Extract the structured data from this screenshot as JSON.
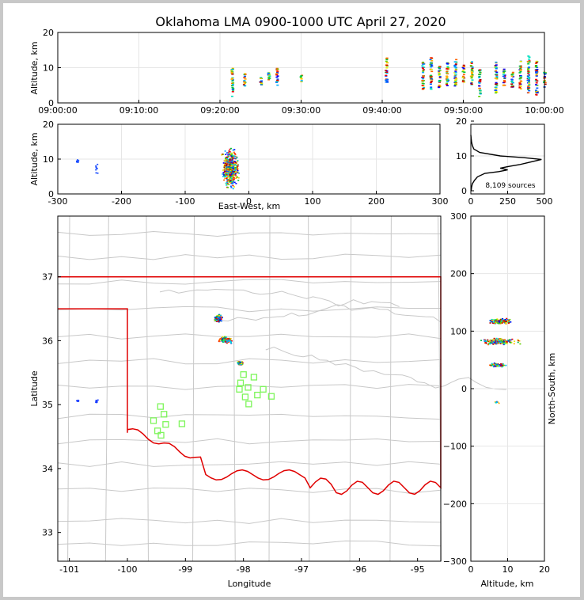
{
  "chart_data": {
    "type": "scatter",
    "title": "Oklahoma LMA 0900-1000 UTC April 27, 2020",
    "colors": {
      "grid": "#e6e6e6",
      "state_border": "#e00000",
      "county_lines": "#c8c8c8",
      "station_marker": "#7df55a",
      "axis": "#000000",
      "frame": "#c8c8c8"
    },
    "panels": [
      {
        "id": "time-altitude",
        "ylabel": "Altitude, km",
        "ylim": [
          0,
          20
        ],
        "yticks": [
          "0",
          "10",
          "20"
        ],
        "xlim_labels": [
          "09:00:00",
          "10:00:00"
        ],
        "xticks": [
          "09:00:00",
          "09:10:00",
          "09:20:00",
          "09:30:00",
          "09:40:00",
          "09:50:00",
          "10:00:00"
        ],
        "clusters": [
          {
            "t_min": 21.5,
            "alt_min": 2,
            "alt_max": 10
          },
          {
            "t_min": 23,
            "alt_min": 5,
            "alt_max": 9
          },
          {
            "t_min": 25,
            "alt_min": 5,
            "alt_max": 8
          },
          {
            "t_min": 26,
            "alt_min": 6,
            "alt_max": 9
          },
          {
            "t_min": 27,
            "alt_min": 5,
            "alt_max": 10
          },
          {
            "t_min": 30,
            "alt_min": 6,
            "alt_max": 8
          },
          {
            "t_min": 40.5,
            "alt_min": 6,
            "alt_max": 13
          },
          {
            "t_min": 45,
            "alt_min": 4,
            "alt_max": 12
          },
          {
            "t_min": 46,
            "alt_min": 4,
            "alt_max": 13
          },
          {
            "t_min": 47,
            "alt_min": 4,
            "alt_max": 11
          },
          {
            "t_min": 48,
            "alt_min": 5,
            "alt_max": 12
          },
          {
            "t_min": 49,
            "alt_min": 5,
            "alt_max": 13
          },
          {
            "t_min": 50,
            "alt_min": 6,
            "alt_max": 11
          },
          {
            "t_min": 51,
            "alt_min": 5,
            "alt_max": 12
          },
          {
            "t_min": 52,
            "alt_min": 2,
            "alt_max": 10
          },
          {
            "t_min": 54,
            "alt_min": 3,
            "alt_max": 12
          },
          {
            "t_min": 55,
            "alt_min": 5,
            "alt_max": 10
          },
          {
            "t_min": 56,
            "alt_min": 4,
            "alt_max": 9
          },
          {
            "t_min": 57,
            "alt_min": 4,
            "alt_max": 12
          },
          {
            "t_min": 58,
            "alt_min": 3,
            "alt_max": 14
          },
          {
            "t_min": 59,
            "alt_min": 2,
            "alt_max": 12
          },
          {
            "t_min": 60,
            "alt_min": 4,
            "alt_max": 9
          }
        ]
      },
      {
        "id": "east-west-altitude",
        "xlabel": "East-West, km",
        "ylabel": "Altitude, km",
        "xlim": [
          -300,
          300
        ],
        "ylim": [
          0,
          20
        ],
        "xticks": [
          "-300",
          "-200",
          "-100",
          "0",
          "100",
          "200",
          "300"
        ],
        "yticks": [
          "0",
          "10",
          "20"
        ],
        "clusters": [
          {
            "x_km": -270,
            "alt_min": 9,
            "alt_max": 10
          },
          {
            "x_km": -240,
            "alt_min": 6,
            "alt_max": 9
          },
          {
            "x_km": -30,
            "alt_min": 1,
            "alt_max": 14
          }
        ]
      },
      {
        "id": "altitude-histogram",
        "xlim": [
          0,
          500
        ],
        "ylim": [
          0,
          20
        ],
        "xticks": [
          "0",
          "250",
          "500"
        ],
        "yticks": [
          "0",
          "10",
          "20"
        ],
        "note": "8,109 sources",
        "counts": [
          {
            "alt": 0,
            "n": 2
          },
          {
            "alt": 1,
            "n": 5
          },
          {
            "alt": 2,
            "n": 10
          },
          {
            "alt": 3,
            "n": 25
          },
          {
            "alt": 4,
            "n": 45
          },
          {
            "alt": 5,
            "n": 95
          },
          {
            "alt": 5.5,
            "n": 190
          },
          {
            "alt": 6,
            "n": 250
          },
          {
            "alt": 6.5,
            "n": 200
          },
          {
            "alt": 7,
            "n": 260
          },
          {
            "alt": 7.5,
            "n": 330
          },
          {
            "alt": 8,
            "n": 380
          },
          {
            "alt": 9,
            "n": 480
          },
          {
            "alt": 9.5,
            "n": 360
          },
          {
            "alt": 10,
            "n": 200
          },
          {
            "alt": 11,
            "n": 60
          },
          {
            "alt": 12,
            "n": 20
          },
          {
            "alt": 13,
            "n": 10
          },
          {
            "alt": 14,
            "n": 5
          },
          {
            "alt": 15,
            "n": 2
          },
          {
            "alt": 16,
            "n": 0
          }
        ]
      },
      {
        "id": "plan-view",
        "xlabel": "Longitude",
        "ylabel": "Latitude",
        "xlim": [
          -101.2,
          -94.6
        ],
        "ylim": [
          32.55,
          37.95
        ],
        "xticks": [
          "-101",
          "-100",
          "-99",
          "-98",
          "-97",
          "-96",
          "-95"
        ],
        "yticks": [
          "33",
          "34",
          "35",
          "36",
          "37"
        ],
        "clusters": [
          {
            "lon": -100.87,
            "lat": 35.07,
            "sx": 0.02,
            "sy": 0.02
          },
          {
            "lon": -100.55,
            "lat": 35.06,
            "sx": 0.03,
            "sy": 0.03
          },
          {
            "lon": -98.45,
            "lat": 36.36,
            "sx": 0.08,
            "sy": 0.07
          },
          {
            "lon": -98.32,
            "lat": 36.02,
            "sx": 0.14,
            "sy": 0.07
          },
          {
            "lon": -98.07,
            "lat": 35.66,
            "sx": 0.06,
            "sy": 0.03
          }
        ],
        "stations": [
          {
            "lon": -98.0,
            "lat": 35.47
          },
          {
            "lon": -97.82,
            "lat": 35.43
          },
          {
            "lon": -98.05,
            "lat": 35.34
          },
          {
            "lon": -97.92,
            "lat": 35.27
          },
          {
            "lon": -98.07,
            "lat": 35.24
          },
          {
            "lon": -97.66,
            "lat": 35.24
          },
          {
            "lon": -97.76,
            "lat": 35.15
          },
          {
            "lon": -97.97,
            "lat": 35.12
          },
          {
            "lon": -97.52,
            "lat": 35.13
          },
          {
            "lon": -97.91,
            "lat": 35.01
          },
          {
            "lon": -99.43,
            "lat": 34.97
          },
          {
            "lon": -99.37,
            "lat": 34.85
          },
          {
            "lon": -99.55,
            "lat": 34.75
          },
          {
            "lon": -99.34,
            "lat": 34.69
          },
          {
            "lon": -99.06,
            "lat": 34.7
          },
          {
            "lon": -99.48,
            "lat": 34.59
          },
          {
            "lon": -99.42,
            "lat": 34.52
          }
        ]
      },
      {
        "id": "altitude-northsouth",
        "xlabel": "Altitude, km",
        "ylabel": "North-South, km",
        "xlim": [
          0,
          20
        ],
        "ylim": [
          -300,
          300
        ],
        "xticks": [
          "0",
          "10",
          "20"
        ],
        "yticks": [
          "300",
          "200",
          "100",
          "0",
          "−100",
          "−200",
          "−300"
        ],
        "clusters": [
          {
            "ns_km": 118,
            "alt_min": 4,
            "alt_max": 12,
            "sy": 6
          },
          {
            "ns_km": 83,
            "alt_min": 1,
            "alt_max": 14,
            "sy": 7
          },
          {
            "ns_km": 42,
            "alt_min": 4,
            "alt_max": 10,
            "sy": 4
          },
          {
            "ns_km": -23,
            "alt_min": 6,
            "alt_max": 8,
            "sy": 3
          }
        ]
      }
    ]
  }
}
